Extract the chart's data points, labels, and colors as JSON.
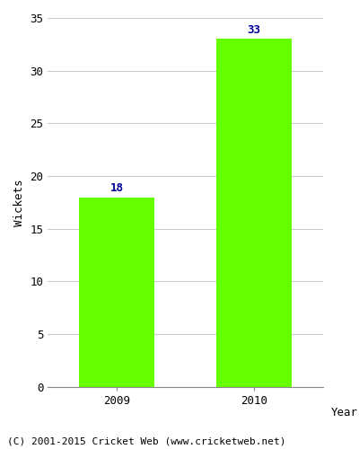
{
  "categories": [
    "2009",
    "2010"
  ],
  "values": [
    18,
    33
  ],
  "bar_color": "#66ff00",
  "bar_edgecolor": "#66ff00",
  "label_color": "#000099",
  "ylabel": "Wickets",
  "xlabel": "Year",
  "ylim": [
    0,
    35
  ],
  "yticks": [
    0,
    5,
    10,
    15,
    20,
    25,
    30,
    35
  ],
  "footer": "(C) 2001-2015 Cricket Web (www.cricketweb.net)",
  "label_fontsize": 9,
  "axis_fontsize": 9,
  "footer_fontsize": 8,
  "bar_width": 0.55,
  "background_color": "#ffffff",
  "grid_color": "#cccccc"
}
